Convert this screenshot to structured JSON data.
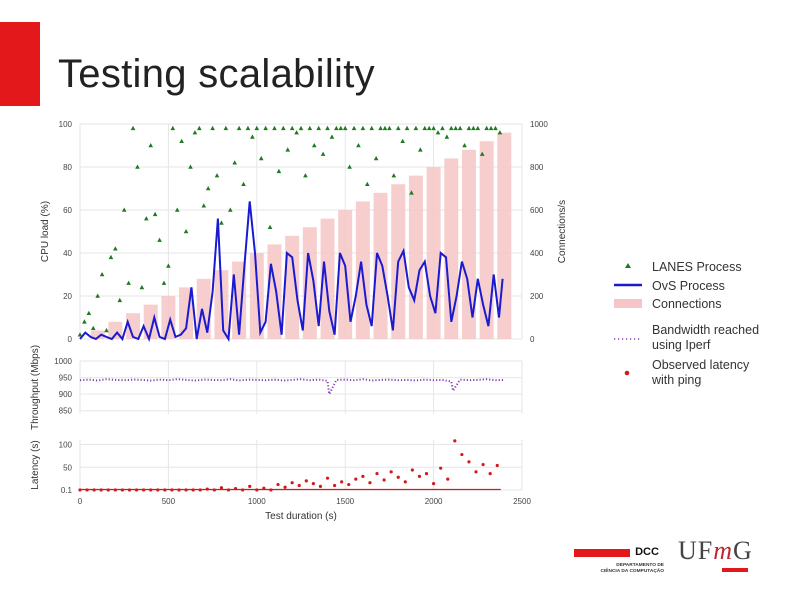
{
  "colors": {
    "accent": "#e2181b",
    "lanes": "#1e7a1e",
    "ovs": "#1a1ad0",
    "connections": "#f6c6c6",
    "bandwidth": "#8a3ab9",
    "latency": "#d11a1a",
    "grid": "#e6e6e6"
  },
  "slide": {
    "title": "Testing scalability"
  },
  "chart_data": [
    {
      "name": "cpu",
      "type": "scatter",
      "title": "",
      "ylabel": "CPU load (%)",
      "y2label": "Connections/s",
      "ylim": [
        0,
        100
      ],
      "y2lim": [
        0,
        1000
      ],
      "yticks": [
        "0",
        "20",
        "40",
        "60",
        "80",
        "100"
      ],
      "y2ticks": [
        "0",
        "200",
        "400",
        "600",
        "800",
        "1000"
      ],
      "xlim": [
        0,
        2500
      ],
      "series": [
        {
          "name": "Connections",
          "type": "bar",
          "x": [
            100,
            200,
            300,
            400,
            500,
            600,
            700,
            800,
            900,
            1000,
            1100,
            1200,
            1300,
            1400,
            1500,
            1600,
            1700,
            1800,
            1900,
            2000,
            2100,
            2200,
            2300,
            2400
          ],
          "values": [
            40,
            80,
            120,
            160,
            200,
            240,
            280,
            320,
            360,
            400,
            440,
            480,
            520,
            560,
            600,
            640,
            680,
            720,
            760,
            800,
            840,
            880,
            920,
            960
          ]
        },
        {
          "name": "OvS Process",
          "type": "line",
          "x": [
            0,
            30,
            60,
            90,
            120,
            150,
            180,
            210,
            240,
            270,
            300,
            330,
            360,
            390,
            420,
            450,
            480,
            510,
            540,
            570,
            600,
            630,
            660,
            690,
            720,
            750,
            780,
            810,
            840,
            870,
            900,
            930,
            960,
            990,
            1020,
            1050,
            1080,
            1110,
            1140,
            1170,
            1200,
            1230,
            1260,
            1290,
            1320,
            1350,
            1380,
            1410,
            1440,
            1470,
            1500,
            1530,
            1560,
            1590,
            1620,
            1650,
            1680,
            1710,
            1740,
            1770,
            1800,
            1830,
            1860,
            1890,
            1920,
            1950,
            1980,
            2010,
            2040,
            2070,
            2100,
            2130,
            2160,
            2190,
            2220,
            2250,
            2280,
            2310,
            2340,
            2370,
            2390
          ],
          "values": [
            0,
            3,
            1,
            0,
            2,
            1,
            0,
            3,
            0,
            8,
            1,
            0,
            6,
            0,
            10,
            1,
            0,
            9,
            1,
            2,
            5,
            24,
            0,
            14,
            3,
            22,
            56,
            4,
            0,
            30,
            2,
            34,
            64,
            40,
            3,
            8,
            35,
            22,
            2,
            40,
            38,
            18,
            4,
            40,
            27,
            6,
            36,
            13,
            2,
            40,
            34,
            8,
            20,
            36,
            16,
            6,
            40,
            34,
            20,
            4,
            36,
            41,
            24,
            18,
            32,
            36,
            20,
            12,
            40,
            38,
            8,
            20,
            36,
            28,
            10,
            28,
            16,
            6,
            30,
            10,
            28
          ]
        },
        {
          "name": "LANES Process",
          "type": "scatter",
          "x": [
            0,
            25,
            50,
            75,
            100,
            125,
            150,
            175,
            200,
            225,
            250,
            275,
            300,
            325,
            350,
            375,
            400,
            425,
            450,
            475,
            500,
            525,
            550,
            575,
            600,
            625,
            650,
            675,
            700,
            725,
            750,
            775,
            800,
            825,
            850,
            875,
            900,
            925,
            950,
            975,
            1000,
            1025,
            1050,
            1075,
            1100,
            1125,
            1150,
            1175,
            1200,
            1225,
            1250,
            1275,
            1300,
            1325,
            1350,
            1375,
            1400,
            1425,
            1450,
            1475,
            1500,
            1525,
            1550,
            1575,
            1600,
            1625,
            1650,
            1675,
            1700,
            1725,
            1750,
            1775,
            1800,
            1825,
            1850,
            1875,
            1900,
            1925,
            1950,
            1975,
            2000,
            2025,
            2050,
            2075,
            2100,
            2125,
            2150,
            2175,
            2200,
            2225,
            2250,
            2275,
            2300,
            2325,
            2350,
            2375
          ],
          "values": [
            2,
            8,
            12,
            5,
            20,
            30,
            4,
            38,
            42,
            18,
            60,
            26,
            98,
            80,
            24,
            56,
            90,
            58,
            46,
            26,
            34,
            98,
            60,
            92,
            50,
            80,
            96,
            98,
            62,
            70,
            98,
            76,
            54,
            98,
            60,
            82,
            98,
            72,
            98,
            94,
            98,
            84,
            98,
            52,
            98,
            78,
            98,
            88,
            98,
            96,
            98,
            76,
            98,
            90,
            98,
            86,
            98,
            94,
            98,
            98,
            98,
            80,
            98,
            90,
            98,
            72,
            98,
            84,
            98,
            98,
            98,
            76,
            98,
            92,
            98,
            68,
            98,
            88,
            98,
            98,
            98,
            96,
            98,
            94,
            98,
            98,
            98,
            90,
            98,
            98,
            98,
            86,
            98,
            98,
            98,
            96
          ]
        }
      ]
    },
    {
      "name": "throughput",
      "type": "line",
      "ylabel": "Throughput (Mbps)",
      "yticks": [
        "1000",
        "950",
        "900",
        "850"
      ],
      "ylim": [
        840,
        1000
      ],
      "xlim": [
        0,
        2500
      ],
      "series": [
        {
          "name": "Bandwidth reached using Iperf",
          "x": [
            0,
            50,
            100,
            150,
            200,
            250,
            300,
            350,
            400,
            450,
            500,
            550,
            600,
            650,
            700,
            750,
            800,
            850,
            900,
            950,
            1000,
            1050,
            1100,
            1150,
            1200,
            1250,
            1300,
            1350,
            1400,
            1410,
            1450,
            1500,
            1550,
            1600,
            1650,
            1700,
            1750,
            1800,
            1850,
            1900,
            1950,
            2000,
            2050,
            2100,
            2110,
            2150,
            2200,
            2250,
            2300,
            2350,
            2400
          ],
          "values": [
            942,
            944,
            941,
            945,
            943,
            942,
            944,
            943,
            941,
            944,
            942,
            945,
            943,
            941,
            944,
            943,
            942,
            945,
            941,
            944,
            943,
            942,
            944,
            941,
            943,
            945,
            942,
            944,
            940,
            900,
            943,
            944,
            942,
            945,
            941,
            943,
            944,
            942,
            943,
            941,
            944,
            942,
            943,
            938,
            910,
            944,
            942,
            943,
            945,
            942,
            943
          ]
        }
      ]
    },
    {
      "name": "latency",
      "type": "scatter",
      "ylabel": "Latency (s)",
      "yticks": [
        "100",
        "50",
        "0.1"
      ],
      "xlim": [
        0,
        2500
      ],
      "xticks": [
        "0",
        "500",
        "1000",
        "1500",
        "2000",
        "2500"
      ],
      "xlabel": "Test duration (s)",
      "series": [
        {
          "name": "Observed latency with ping",
          "x": [
            0,
            40,
            80,
            120,
            160,
            200,
            240,
            280,
            320,
            360,
            400,
            440,
            480,
            520,
            560,
            600,
            640,
            680,
            720,
            760,
            800,
            840,
            880,
            920,
            960,
            1000,
            1040,
            1080,
            1120,
            1160,
            1200,
            1240,
            1280,
            1320,
            1360,
            1400,
            1440,
            1480,
            1520,
            1560,
            1600,
            1640,
            1680,
            1720,
            1760,
            1800,
            1840,
            1880,
            1920,
            1960,
            2000,
            2040,
            2080,
            2120,
            2160,
            2200,
            2240,
            2280,
            2320,
            2360
          ],
          "values": [
            0.1,
            0.1,
            0.1,
            0.1,
            0.1,
            0.1,
            0.1,
            0.1,
            0.1,
            0.1,
            0.1,
            0.1,
            0.1,
            0.1,
            0.1,
            0.1,
            0.1,
            0.1,
            2,
            0.1,
            5,
            0.1,
            3,
            0.1,
            8,
            0.1,
            4,
            0.1,
            12,
            6,
            16,
            10,
            20,
            14,
            8,
            26,
            10,
            18,
            12,
            24,
            30,
            16,
            36,
            22,
            40,
            28,
            18,
            44,
            30,
            36,
            14,
            48,
            24,
            108,
            78,
            62,
            40,
            56,
            36,
            54
          ]
        }
      ]
    }
  ],
  "legend": {
    "lanes": "LANES Process",
    "ovs": "OvS Process",
    "connections": "Connections",
    "bandwidth_line1": "Bandwidth reached",
    "bandwidth_line2": "using Iperf",
    "latency_line1": "Observed latency",
    "latency_line2": "with ping"
  },
  "logo": {
    "dcc": "DCC",
    "dcc_sub_line1": "DEPARTAMENTO DE",
    "dcc_sub_line2": "CIÊNCIA DA COMPUTAÇÃO",
    "ufmg_u": "U",
    "ufmg_f": "F",
    "ufmg_m": "m",
    "ufmg_g": "G"
  }
}
